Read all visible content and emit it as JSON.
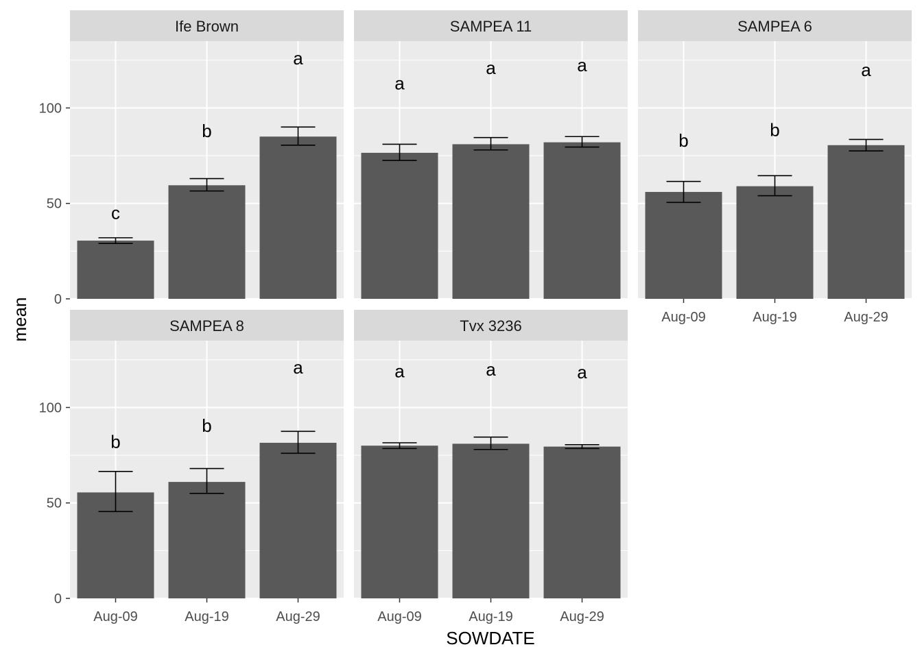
{
  "chart_data": {
    "type": "bar",
    "xlabel": "SOWDATE",
    "ylabel": "mean",
    "ylim": [
      0,
      135
    ],
    "y_ticks": [
      0,
      50,
      100
    ],
    "categories": [
      "Aug-09",
      "Aug-19",
      "Aug-29"
    ],
    "grid": true,
    "colors": {
      "bar": "#595959",
      "panel_bg": "#ebebeb",
      "strip_bg": "#d9d9d9",
      "grid": "#ffffff",
      "errorbar": "#000000"
    },
    "panels": [
      {
        "label": "Ife Brown",
        "values": [
          30.5,
          59.5,
          85
        ],
        "error_low": [
          29,
          56.5,
          80.5
        ],
        "error_high": [
          32,
          63,
          90
        ],
        "letters": [
          "c",
          "b",
          "a"
        ],
        "letter_y": [
          45,
          88,
          126
        ]
      },
      {
        "label": "SAMPEA 11",
        "values": [
          76.5,
          81,
          82
        ],
        "error_low": [
          72.5,
          78,
          79.5
        ],
        "error_high": [
          81,
          84.5,
          85
        ],
        "letters": [
          "a",
          "a",
          "a"
        ],
        "letter_y": [
          113,
          121,
          122.5
        ]
      },
      {
        "label": "SAMPEA 6",
        "values": [
          56,
          59,
          80.5
        ],
        "error_low": [
          50.5,
          54,
          77.5
        ],
        "error_high": [
          61.5,
          64.5,
          83.5
        ],
        "letters": [
          "b",
          "b",
          "a"
        ],
        "letter_y": [
          83,
          88.5,
          120
        ]
      },
      {
        "label": "SAMPEA 8",
        "values": [
          55.5,
          61,
          81.5
        ],
        "error_low": [
          45.5,
          55,
          76
        ],
        "error_high": [
          66.5,
          68,
          87.5
        ],
        "letters": [
          "b",
          "b",
          "a"
        ],
        "letter_y": [
          82,
          90.5,
          121
        ]
      },
      {
        "label": "Tvx 3236",
        "values": [
          80,
          81,
          79.5
        ],
        "error_low": [
          78.5,
          78,
          78.5
        ],
        "error_high": [
          81.5,
          84.5,
          80.5
        ],
        "letters": [
          "a",
          "a",
          "a"
        ],
        "letter_y": [
          119,
          120,
          118.5
        ]
      }
    ]
  }
}
